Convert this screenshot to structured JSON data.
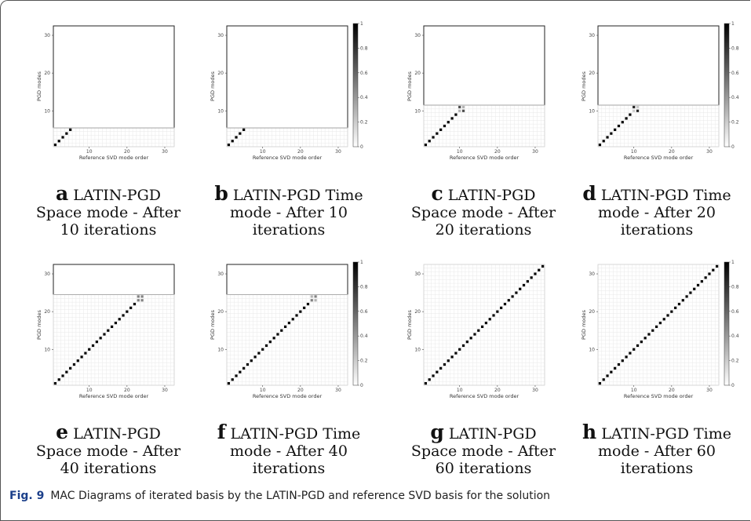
{
  "figure": {
    "label": "Fig. 9",
    "caption": "MAC Diagrams of iterated basis by the LATIN-PGD and reference SVD basis for the solution"
  },
  "colorbar_ticks": [
    "0",
    "0.2",
    "0.4",
    "0.6",
    "0.8",
    "1"
  ],
  "chart_data": [
    {
      "type": "heatmap",
      "panel": "a",
      "caption": "LATIN-PGD Space mode - After 10 iterations",
      "xlabel": "Reference SVD mode order",
      "ylabel": "PGD modes",
      "xticks": [
        "10",
        "20",
        "30"
      ],
      "yticks": [
        "10",
        "20",
        "30"
      ],
      "xlim": [
        1,
        32
      ],
      "ylim": [
        1,
        32
      ],
      "filled_rows": 5,
      "has_colorbar": false,
      "values": [
        [
          1,
          1,
          1
        ],
        [
          2,
          2,
          1
        ],
        [
          3,
          3,
          1
        ],
        [
          4,
          4,
          1
        ],
        [
          5,
          5,
          1
        ]
      ]
    },
    {
      "type": "heatmap",
      "panel": "b",
      "caption": "LATIN-PGD Time mode - After 10 iterations",
      "xlabel": "Reference SVD mode order",
      "ylabel": "PGD modes",
      "xticks": [
        "10",
        "20",
        "30"
      ],
      "yticks": [
        "10",
        "20",
        "30"
      ],
      "xlim": [
        1,
        32
      ],
      "ylim": [
        1,
        32
      ],
      "filled_rows": 5,
      "has_colorbar": true,
      "values": [
        [
          1,
          1,
          1
        ],
        [
          2,
          2,
          1
        ],
        [
          3,
          3,
          1
        ],
        [
          4,
          4,
          1
        ],
        [
          5,
          5,
          1
        ]
      ]
    },
    {
      "type": "heatmap",
      "panel": "c",
      "caption": "LATIN-PGD Space mode - After 20 iterations",
      "xlabel": "Reference SVD mode order",
      "ylabel": "PGD modes",
      "xticks": [
        "10",
        "20",
        "30"
      ],
      "yticks": [
        "10",
        "20",
        "30"
      ],
      "xlim": [
        1,
        32
      ],
      "ylim": [
        1,
        32
      ],
      "filled_rows": 11,
      "has_colorbar": false,
      "values": [
        [
          1,
          1,
          1
        ],
        [
          2,
          2,
          1
        ],
        [
          3,
          3,
          1
        ],
        [
          4,
          4,
          1
        ],
        [
          5,
          5,
          1
        ],
        [
          6,
          6,
          1
        ],
        [
          7,
          7,
          1
        ],
        [
          8,
          8,
          1
        ],
        [
          9,
          9,
          1
        ],
        [
          10,
          10,
          0.3
        ],
        [
          11,
          10,
          0.7
        ],
        [
          10,
          11,
          0.7
        ],
        [
          11,
          11,
          0.3
        ]
      ]
    },
    {
      "type": "heatmap",
      "panel": "d",
      "caption": "LATIN-PGD Time mode - After 20 iterations",
      "xlabel": "Reference SVD mode order",
      "ylabel": "PGD modes",
      "xticks": [
        "10",
        "20",
        "30"
      ],
      "yticks": [
        "10",
        "20",
        "30"
      ],
      "xlim": [
        1,
        32
      ],
      "ylim": [
        1,
        32
      ],
      "filled_rows": 11,
      "has_colorbar": true,
      "values": [
        [
          1,
          1,
          1
        ],
        [
          2,
          2,
          1
        ],
        [
          3,
          3,
          1
        ],
        [
          4,
          4,
          1
        ],
        [
          5,
          5,
          1
        ],
        [
          6,
          6,
          1
        ],
        [
          7,
          7,
          1
        ],
        [
          8,
          8,
          1
        ],
        [
          9,
          9,
          1
        ],
        [
          10,
          10,
          0.2
        ],
        [
          11,
          10,
          0.85
        ],
        [
          10,
          11,
          0.85
        ],
        [
          11,
          11,
          0.2
        ]
      ]
    },
    {
      "type": "heatmap",
      "panel": "e",
      "caption": "LATIN-PGD Space mode - After 40 iterations",
      "xlabel": "Reference SVD mode order",
      "ylabel": "PGD modes",
      "xticks": [
        "10",
        "20",
        "30"
      ],
      "yticks": [
        "10",
        "20",
        "30"
      ],
      "xlim": [
        1,
        32
      ],
      "ylim": [
        1,
        32
      ],
      "filled_rows": 24,
      "has_colorbar": false,
      "values": [
        [
          1,
          1,
          1
        ],
        [
          2,
          2,
          1
        ],
        [
          3,
          3,
          1
        ],
        [
          4,
          4,
          1
        ],
        [
          5,
          5,
          1
        ],
        [
          6,
          6,
          1
        ],
        [
          7,
          7,
          1
        ],
        [
          8,
          8,
          1
        ],
        [
          9,
          9,
          1
        ],
        [
          10,
          10,
          1
        ],
        [
          11,
          11,
          1
        ],
        [
          12,
          12,
          1
        ],
        [
          13,
          13,
          1
        ],
        [
          14,
          14,
          1
        ],
        [
          15,
          15,
          1
        ],
        [
          16,
          16,
          1
        ],
        [
          17,
          17,
          1
        ],
        [
          18,
          18,
          1
        ],
        [
          19,
          19,
          1
        ],
        [
          20,
          20,
          1
        ],
        [
          21,
          21,
          1
        ],
        [
          22,
          22,
          1
        ],
        [
          23,
          23,
          0.5
        ],
        [
          24,
          23,
          0.5
        ],
        [
          23,
          24,
          0.5
        ],
        [
          24,
          24,
          0.5
        ]
      ]
    },
    {
      "type": "heatmap",
      "panel": "f",
      "caption": "LATIN-PGD Time mode - After 40 iterations",
      "xlabel": "Reference SVD mode order",
      "ylabel": "PGD modes",
      "xticks": [
        "10",
        "20",
        "30"
      ],
      "yticks": [
        "10",
        "20",
        "30"
      ],
      "xlim": [
        1,
        32
      ],
      "ylim": [
        1,
        32
      ],
      "filled_rows": 24,
      "has_colorbar": true,
      "values": [
        [
          1,
          1,
          1
        ],
        [
          2,
          2,
          1
        ],
        [
          3,
          3,
          1
        ],
        [
          4,
          4,
          1
        ],
        [
          5,
          5,
          1
        ],
        [
          6,
          6,
          1
        ],
        [
          7,
          7,
          1
        ],
        [
          8,
          8,
          1
        ],
        [
          9,
          9,
          1
        ],
        [
          10,
          10,
          1
        ],
        [
          11,
          11,
          1
        ],
        [
          12,
          12,
          1
        ],
        [
          13,
          13,
          1
        ],
        [
          14,
          14,
          1
        ],
        [
          15,
          15,
          1
        ],
        [
          16,
          16,
          1
        ],
        [
          17,
          17,
          1
        ],
        [
          18,
          18,
          1
        ],
        [
          19,
          19,
          1
        ],
        [
          20,
          20,
          1
        ],
        [
          21,
          21,
          1
        ],
        [
          22,
          22,
          1
        ],
        [
          23,
          23,
          0.5
        ],
        [
          24,
          23,
          0.3
        ],
        [
          23,
          24,
          0.3
        ],
        [
          24,
          24,
          0.5
        ]
      ]
    },
    {
      "type": "heatmap",
      "panel": "g",
      "caption": "LATIN-PGD Space mode - After 60 iterations",
      "xlabel": "Reference SVD mode order",
      "ylabel": "PGD modes",
      "xticks": [
        "10",
        "20",
        "30"
      ],
      "yticks": [
        "10",
        "20",
        "30"
      ],
      "xlim": [
        1,
        32
      ],
      "ylim": [
        1,
        32
      ],
      "filled_rows": 32,
      "has_colorbar": false,
      "values": [
        [
          1,
          1,
          1
        ],
        [
          2,
          2,
          1
        ],
        [
          3,
          3,
          1
        ],
        [
          4,
          4,
          1
        ],
        [
          5,
          5,
          1
        ],
        [
          6,
          6,
          1
        ],
        [
          7,
          7,
          1
        ],
        [
          8,
          8,
          1
        ],
        [
          9,
          9,
          1
        ],
        [
          10,
          10,
          1
        ],
        [
          11,
          11,
          1
        ],
        [
          12,
          12,
          1
        ],
        [
          13,
          13,
          1
        ],
        [
          14,
          14,
          1
        ],
        [
          15,
          15,
          1
        ],
        [
          16,
          16,
          1
        ],
        [
          17,
          17,
          1
        ],
        [
          18,
          18,
          1
        ],
        [
          19,
          19,
          1
        ],
        [
          20,
          20,
          1
        ],
        [
          21,
          21,
          1
        ],
        [
          22,
          22,
          1
        ],
        [
          23,
          23,
          1
        ],
        [
          24,
          24,
          1
        ],
        [
          25,
          25,
          1
        ],
        [
          26,
          26,
          1
        ],
        [
          27,
          27,
          1
        ],
        [
          28,
          28,
          1
        ],
        [
          29,
          29,
          1
        ],
        [
          30,
          30,
          1
        ],
        [
          31,
          31,
          1
        ],
        [
          32,
          32,
          1
        ]
      ]
    },
    {
      "type": "heatmap",
      "panel": "h",
      "caption": "LATIN-PGD Time mode - After 60 iterations",
      "xlabel": "Reference SVD mode order",
      "ylabel": "PGD modes",
      "xticks": [
        "10",
        "20",
        "30"
      ],
      "yticks": [
        "10",
        "20",
        "30"
      ],
      "xlim": [
        1,
        32
      ],
      "ylim": [
        1,
        32
      ],
      "filled_rows": 32,
      "has_colorbar": true,
      "values": [
        [
          1,
          1,
          1
        ],
        [
          2,
          2,
          1
        ],
        [
          3,
          3,
          1
        ],
        [
          4,
          4,
          1
        ],
        [
          5,
          5,
          1
        ],
        [
          6,
          6,
          1
        ],
        [
          7,
          7,
          1
        ],
        [
          8,
          8,
          1
        ],
        [
          9,
          9,
          1
        ],
        [
          10,
          10,
          1
        ],
        [
          11,
          11,
          1
        ],
        [
          12,
          12,
          1
        ],
        [
          13,
          13,
          1
        ],
        [
          14,
          14,
          1
        ],
        [
          15,
          15,
          1
        ],
        [
          16,
          16,
          1
        ],
        [
          17,
          17,
          1
        ],
        [
          18,
          18,
          1
        ],
        [
          19,
          19,
          1
        ],
        [
          20,
          20,
          1
        ],
        [
          21,
          21,
          1
        ],
        [
          22,
          22,
          1
        ],
        [
          23,
          23,
          1
        ],
        [
          24,
          24,
          1
        ],
        [
          25,
          25,
          1
        ],
        [
          26,
          26,
          1
        ],
        [
          27,
          27,
          1
        ],
        [
          28,
          28,
          1
        ],
        [
          29,
          29,
          1
        ],
        [
          30,
          30,
          1
        ],
        [
          31,
          31,
          1
        ],
        [
          32,
          32,
          1
        ]
      ]
    }
  ],
  "captions": [
    {
      "letter": "a",
      "lines": [
        "LATIN-PGD",
        "Space mode - After",
        "10 iterations"
      ]
    },
    {
      "letter": "b",
      "lines": [
        "LATIN-PGD Time",
        "mode - After 10",
        "iterations"
      ]
    },
    {
      "letter": "c",
      "lines": [
        "LATIN-PGD",
        "Space mode - After",
        "20 iterations"
      ]
    },
    {
      "letter": "d",
      "lines": [
        "LATIN-PGD Time",
        "mode - After 20",
        "iterations"
      ]
    },
    {
      "letter": "e",
      "lines": [
        "LATIN-PGD",
        "Space mode - After",
        "40 iterations"
      ]
    },
    {
      "letter": "f",
      "lines": [
        "LATIN-PGD Time",
        "mode - After 40",
        "iterations"
      ]
    },
    {
      "letter": "g",
      "lines": [
        "LATIN-PGD",
        "Space mode - After",
        "60 iterations"
      ]
    },
    {
      "letter": "h",
      "lines": [
        "LATIN-PGD Time",
        "mode - After 60",
        "iterations"
      ]
    }
  ]
}
